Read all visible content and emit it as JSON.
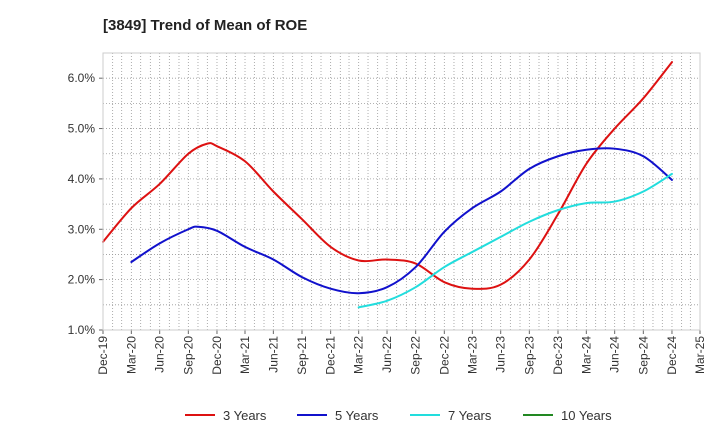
{
  "chart_data": {
    "type": "line",
    "title": "[3849]  Trend of Mean of ROE",
    "xlabel": "",
    "ylabel": "",
    "x_ticks": [
      "Dec-19",
      "Mar-20",
      "Jun-20",
      "Sep-20",
      "Dec-20",
      "Mar-21",
      "Jun-21",
      "Sep-21",
      "Dec-21",
      "Mar-22",
      "Jun-22",
      "Sep-22",
      "Dec-22",
      "Mar-23",
      "Jun-23",
      "Sep-23",
      "Dec-23",
      "Mar-24",
      "Jun-24",
      "Sep-24",
      "Dec-24",
      "Mar-25"
    ],
    "y_ticks": [
      "1.0%",
      "2.0%",
      "3.0%",
      "4.0%",
      "5.0%",
      "6.0%"
    ],
    "ylim": [
      1.0,
      6.5
    ],
    "grid": true,
    "legend_position": "bottom",
    "series": [
      {
        "name": "3 Years",
        "color": "#dd1111",
        "points": [
          [
            "Dec-19",
            2.75
          ],
          [
            "Mar-20",
            3.42
          ],
          [
            "Jun-20",
            3.9
          ],
          [
            "Sep-20",
            4.5
          ],
          [
            "Nov-20",
            4.7
          ],
          [
            "Dec-20",
            4.65
          ],
          [
            "Mar-21",
            4.35
          ],
          [
            "Jun-21",
            3.75
          ],
          [
            "Sep-21",
            3.2
          ],
          [
            "Dec-21",
            2.65
          ],
          [
            "Mar-22",
            2.38
          ],
          [
            "Jun-22",
            2.4
          ],
          [
            "Sep-22",
            2.32
          ],
          [
            "Dec-22",
            1.95
          ],
          [
            "Mar-23",
            1.82
          ],
          [
            "Jun-23",
            1.9
          ],
          [
            "Sep-23",
            2.4
          ],
          [
            "Dec-23",
            3.3
          ],
          [
            "Mar-24",
            4.3
          ],
          [
            "Jun-24",
            5.0
          ],
          [
            "Sep-24",
            5.6
          ],
          [
            "Dec-24",
            6.32
          ]
        ]
      },
      {
        "name": "5 Years",
        "color": "#1111cc",
        "points": [
          [
            "Mar-20",
            2.35
          ],
          [
            "Jun-20",
            2.72
          ],
          [
            "Sep-20",
            3.0
          ],
          [
            "Oct-20",
            3.05
          ],
          [
            "Dec-20",
            2.97
          ],
          [
            "Mar-21",
            2.65
          ],
          [
            "Jun-21",
            2.4
          ],
          [
            "Sep-21",
            2.05
          ],
          [
            "Dec-21",
            1.82
          ],
          [
            "Mar-22",
            1.73
          ],
          [
            "Jun-22",
            1.85
          ],
          [
            "Sep-22",
            2.25
          ],
          [
            "Dec-22",
            2.95
          ],
          [
            "Mar-23",
            3.42
          ],
          [
            "Jun-23",
            3.75
          ],
          [
            "Sep-23",
            4.2
          ],
          [
            "Dec-23",
            4.45
          ],
          [
            "Mar-24",
            4.58
          ],
          [
            "Jun-24",
            4.6
          ],
          [
            "Sep-24",
            4.45
          ],
          [
            "Dec-24",
            3.98
          ]
        ]
      },
      {
        "name": "7 Years",
        "color": "#22dddd",
        "points": [
          [
            "Mar-22",
            1.45
          ],
          [
            "Jun-22",
            1.58
          ],
          [
            "Sep-22",
            1.85
          ],
          [
            "Dec-22",
            2.25
          ],
          [
            "Mar-23",
            2.55
          ],
          [
            "Jun-23",
            2.85
          ],
          [
            "Sep-23",
            3.15
          ],
          [
            "Dec-23",
            3.38
          ],
          [
            "Mar-24",
            3.52
          ],
          [
            "Jun-24",
            3.55
          ],
          [
            "Sep-24",
            3.75
          ],
          [
            "Dec-24",
            4.1
          ]
        ]
      },
      {
        "name": "10 Years",
        "color": "#228822",
        "points": []
      }
    ]
  }
}
